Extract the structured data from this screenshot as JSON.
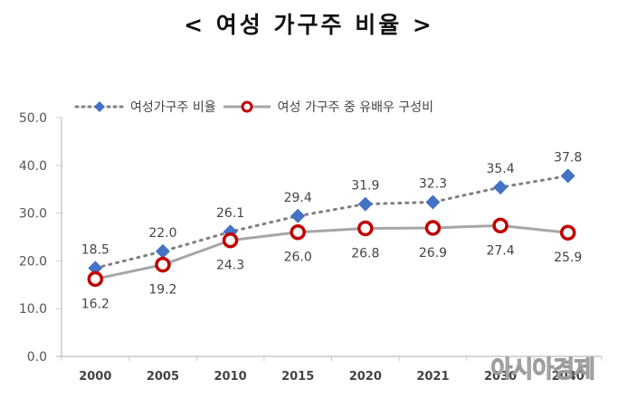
{
  "title": "< 여성 가구주 비율 >",
  "watermark": "아시아경제",
  "chart_data": {
    "type": "line",
    "title": "< 여성 가구주 비율 >",
    "xlabel": "",
    "ylabel": "",
    "categories": [
      "2000",
      "2005",
      "2010",
      "2015",
      "2020",
      "2021",
      "2030",
      "2040"
    ],
    "ylim": [
      0,
      50
    ],
    "yticks": [
      "0.0",
      "10.0",
      "20.0",
      "30.0",
      "40.0",
      "50.0"
    ],
    "grid": false,
    "legend_position": "top",
    "series": [
      {
        "name": "여성가구주 비율",
        "values": [
          18.5,
          22.0,
          26.1,
          29.4,
          31.9,
          32.3,
          35.4,
          37.8
        ],
        "labels": [
          "18.5",
          "22.0",
          "26.1",
          "29.4",
          "31.9",
          "32.3",
          "35.4",
          "37.8"
        ],
        "color": "#4472C4",
        "marker": "diamond",
        "line_style": "dotted",
        "line_color": "#808080"
      },
      {
        "name": "여성 가구주 중 유배우 구성비",
        "values": [
          16.2,
          19.2,
          24.3,
          26.0,
          26.8,
          26.9,
          27.4,
          25.9
        ],
        "labels": [
          "16.2",
          "19.2",
          "24.3",
          "26.0",
          "26.8",
          "26.9",
          "27.4",
          "25.9"
        ],
        "color": "#C00000",
        "marker": "circle-open",
        "line_style": "solid",
        "line_color": "#a6a6a6"
      }
    ]
  }
}
